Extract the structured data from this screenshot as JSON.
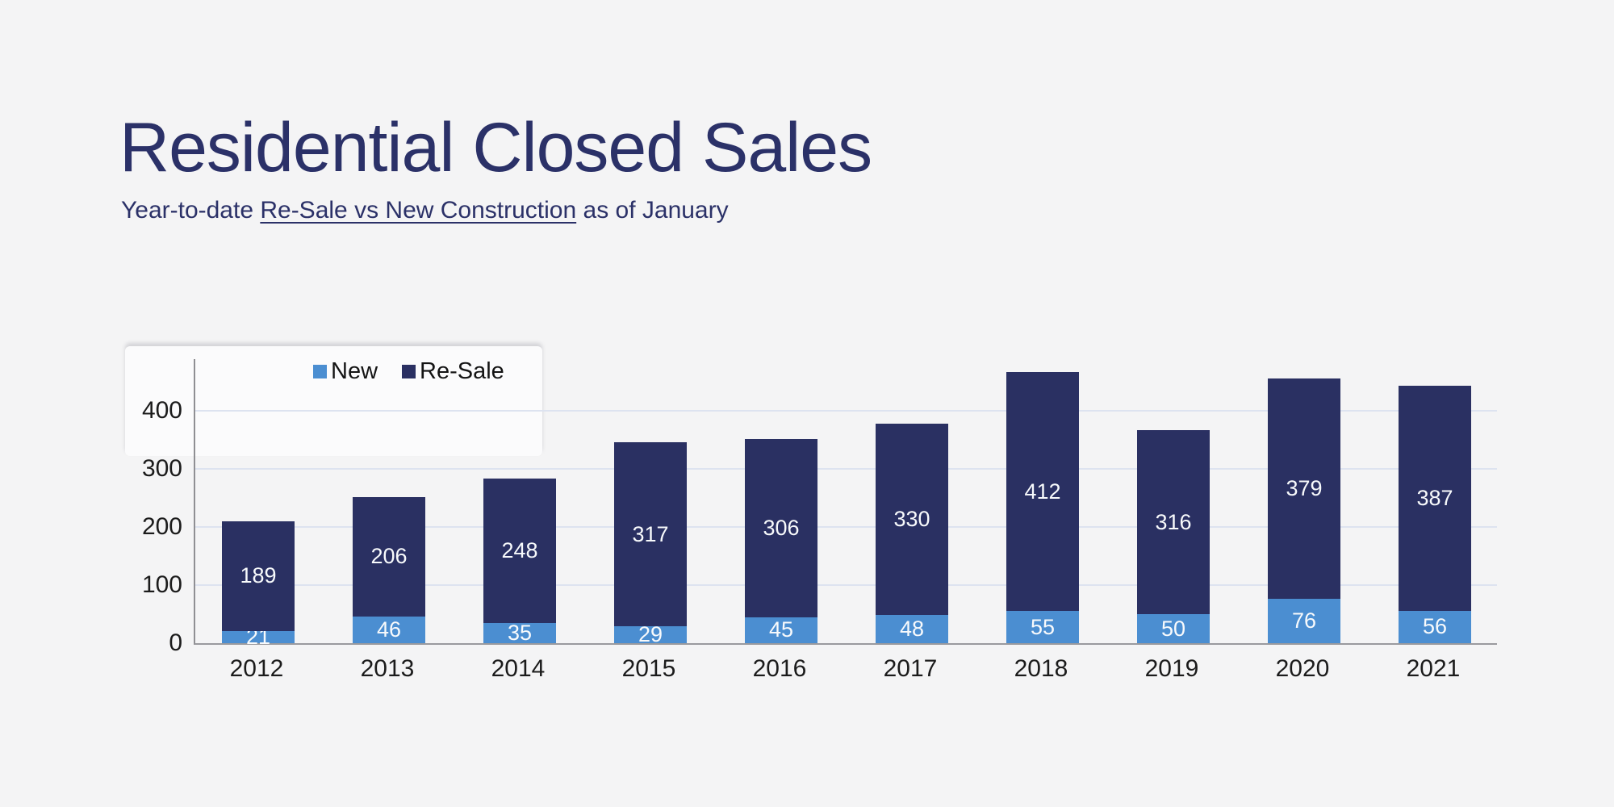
{
  "page": {
    "background_color": "#f4f4f5",
    "title": "Residential Closed Sales",
    "title_color": "#2b3168",
    "subtitle_prefix": "Year-to-date ",
    "subtitle_underlined": "Re-Sale vs New Construction",
    "subtitle_suffix": " as of January"
  },
  "chart_data": {
    "type": "bar",
    "stacked": true,
    "title": "Residential Closed Sales",
    "subtitle": "Year-to-date Re-Sale vs New Construction as of January",
    "categories": [
      "2012",
      "2013",
      "2014",
      "2015",
      "2016",
      "2017",
      "2018",
      "2019",
      "2020",
      "2021"
    ],
    "series": [
      {
        "name": "New",
        "color": "#4b8ed1",
        "values": [
          21,
          46,
          35,
          29,
          45,
          48,
          55,
          50,
          76,
          56
        ]
      },
      {
        "name": "Re-Sale",
        "color": "#2a3062",
        "values": [
          189,
          206,
          248,
          317,
          306,
          330,
          412,
          316,
          379,
          387
        ]
      }
    ],
    "totals": [
      210,
      252,
      283,
      346,
      351,
      378,
      467,
      366,
      455,
      443
    ],
    "xlabel": "",
    "ylabel": "",
    "y_ticks": [
      0,
      100,
      200,
      300,
      400
    ],
    "ylim": [
      0,
      496
    ],
    "grid": true,
    "gridline_color": "#dde3f0",
    "axis_color": "#8f8f93",
    "tick_label_color": "#1b1b1b",
    "value_label_color": "#f8fafc",
    "legend_position": "top-inside",
    "legend_labels": [
      "New",
      "Re-Sale"
    ]
  }
}
